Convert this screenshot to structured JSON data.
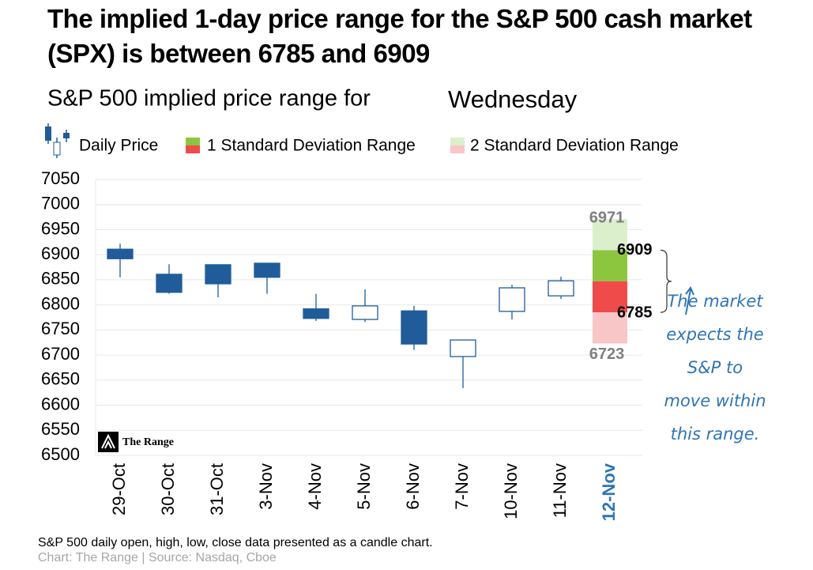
{
  "chart_data": {
    "type": "candlestick",
    "title": "The implied 1-day price range for the S&P 500 cash market (SPX) is between 6785 and 6909",
    "subtitle": "S&P 500 implied price range for",
    "subtitle_day": "Wednesday",
    "categories": [
      "29-Oct",
      "30-Oct",
      "31-Oct",
      "3-Nov",
      "4-Nov",
      "5-Nov",
      "6-Nov",
      "7-Nov",
      "10-Nov",
      "11-Nov",
      "12-Nov"
    ],
    "highlight_index": 10,
    "series": [
      {
        "name": "Daily Price",
        "color": "#1f5c99",
        "open": [
          6911,
          6861,
          6880,
          6883,
          6792,
          6771,
          6788,
          6697,
          6787,
          6818,
          null
        ],
        "high": [
          6922,
          6881,
          6880,
          6883,
          6822,
          6831,
          6798,
          6730,
          6840,
          6856,
          null
        ],
        "low": [
          6855,
          6822,
          6815,
          6822,
          6768,
          6766,
          6710,
          6634,
          6771,
          6812,
          null
        ],
        "close": [
          6892,
          6825,
          6842,
          6855,
          6773,
          6798,
          6722,
          6730,
          6834,
          6848,
          null
        ]
      }
    ],
    "ranges": [
      {
        "name": "1 Standard Deviation Range",
        "colors": [
          "#8cc63f",
          "#f04b4b"
        ],
        "low": 6785,
        "high": 6909
      },
      {
        "name": "2 Standard Deviation Range",
        "colors": [
          "#dcefcc",
          "#f8c6c6"
        ],
        "low": 6723,
        "high": 6971
      }
    ],
    "ylim": [
      6500,
      7050
    ],
    "yticks": [
      6500,
      6550,
      6600,
      6650,
      6700,
      6750,
      6800,
      6850,
      6900,
      6950,
      7000,
      7050
    ],
    "grid": true,
    "annotation": "The market expects the S&P to move within this range.",
    "logo": "The Range",
    "footnote": "S&P 500 daily open, high, low, close data presented as a candle chart.",
    "source": "Chart: The Range | Source: Nasdaq, Cboe"
  }
}
